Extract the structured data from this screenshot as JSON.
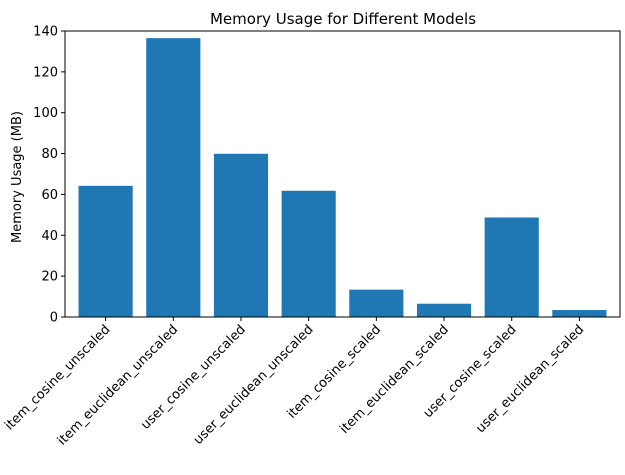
{
  "colors": {
    "bar": "#1f77b4",
    "axis": "#000000",
    "background": "#ffffff"
  },
  "chart_data": {
    "type": "bar",
    "title": "Memory Usage for Different Models",
    "xlabel": "",
    "ylabel": "Memory Usage (MB)",
    "ylim": [
      0,
      140
    ],
    "yticks": [
      0,
      20,
      40,
      60,
      80,
      100,
      120,
      140
    ],
    "grid": false,
    "categories": [
      "item_cosine_unscaled",
      "item_euclidean_unscaled",
      "user_cosine_unscaled",
      "user_euclidean_unscaled",
      "item_cosine_scaled",
      "item_euclidean_scaled",
      "user_cosine_scaled",
      "user_euclidean_scaled"
    ],
    "values": [
      64.2,
      136.5,
      79.9,
      61.8,
      13.4,
      6.5,
      48.7,
      3.4
    ]
  }
}
